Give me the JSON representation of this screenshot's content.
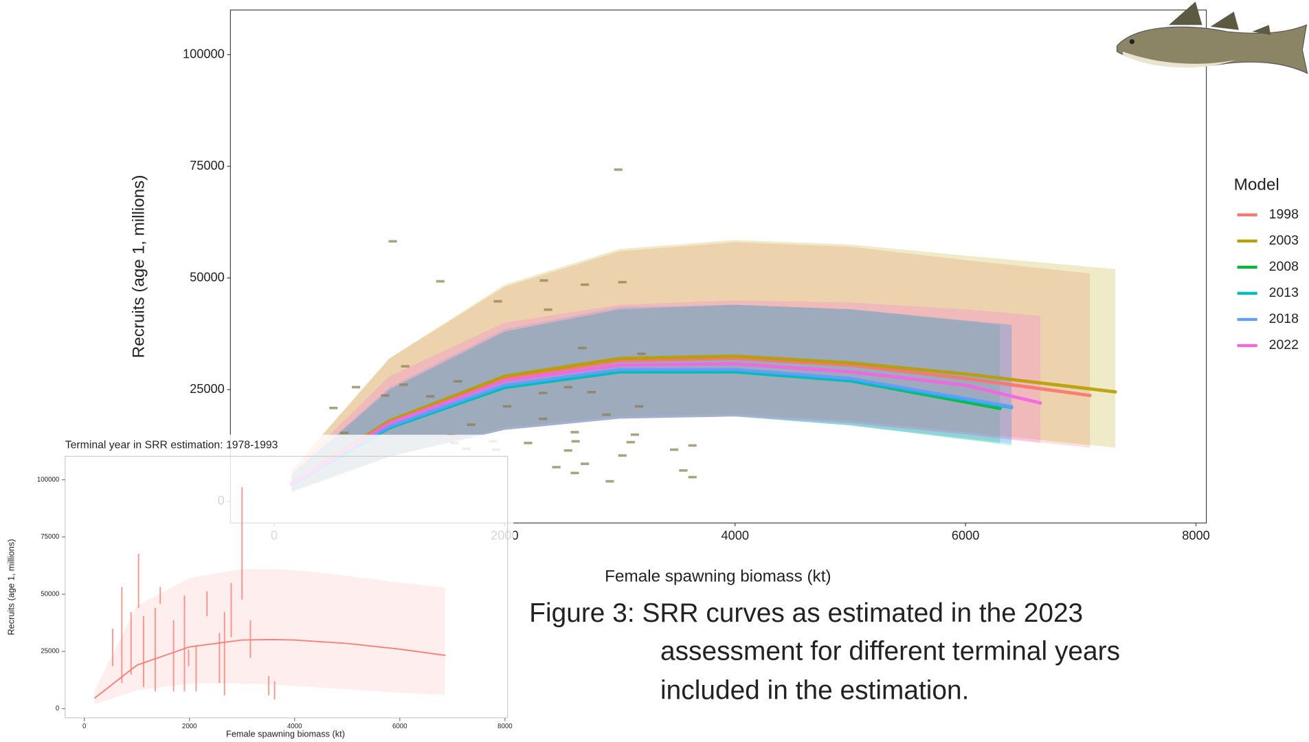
{
  "chart_data": [
    {
      "type": "line",
      "xlabel": "Female spawning biomass (kt)",
      "ylabel": "Recruits (age 1, millions)",
      "xlim": [
        -380,
        8090
      ],
      "ylim": [
        -4850,
        110000
      ],
      "xticks": [
        0,
        2000,
        4000,
        6000,
        8000
      ],
      "yticks": [
        0,
        25000,
        50000,
        75000,
        100000
      ],
      "grid": false,
      "legend": "right",
      "legend_title": "Model",
      "series": [
        {
          "name": "1998",
          "color": "#F8766D",
          "x": [
            150,
            1000,
            2000,
            3000,
            4000,
            5000,
            6000,
            7080
          ],
          "values": [
            4000,
            18000,
            27500,
            31500,
            32000,
            30500,
            27500,
            23700
          ],
          "lower": [
            2000,
            10000,
            16000,
            18500,
            19000,
            17500,
            15000,
            12000
          ],
          "upper": [
            7000,
            32000,
            48000,
            56000,
            58000,
            57000,
            54000,
            51000
          ]
        },
        {
          "name": "2003",
          "color": "#B79F00",
          "x": [
            150,
            1000,
            2000,
            3000,
            4000,
            5000,
            6000,
            7300
          ],
          "values": [
            4000,
            18000,
            28000,
            32000,
            32500,
            31000,
            28500,
            24500
          ],
          "lower": [
            2000,
            10000,
            16500,
            19000,
            19500,
            18000,
            15500,
            12000
          ],
          "upper": [
            7000,
            32000,
            48500,
            56500,
            58500,
            57500,
            55000,
            52000
          ]
        },
        {
          "name": "2008",
          "color": "#00BA38",
          "x": [
            150,
            1000,
            2000,
            3000,
            4000,
            5000,
            6300
          ],
          "values": [
            3800,
            16500,
            25500,
            29000,
            29000,
            27000,
            20800
          ],
          "lower": [
            2200,
            10000,
            16000,
            18500,
            19000,
            17000,
            13000
          ],
          "upper": [
            6000,
            25000,
            38000,
            43000,
            44000,
            43000,
            39500
          ]
        },
        {
          "name": "2013",
          "color": "#00BFC4",
          "x": [
            150,
            1000,
            2000,
            3000,
            4000,
            5000,
            6400
          ],
          "values": [
            3800,
            16500,
            25500,
            29000,
            29000,
            27000,
            21000
          ],
          "lower": [
            2200,
            10000,
            16000,
            18500,
            19000,
            17000,
            12500
          ],
          "upper": [
            6000,
            25000,
            38000,
            43000,
            44000,
            43000,
            39500
          ]
        },
        {
          "name": "2018",
          "color": "#619CFF",
          "x": [
            150,
            1000,
            2000,
            3000,
            4000,
            5000,
            6400
          ],
          "values": [
            3800,
            16800,
            26000,
            29500,
            29500,
            27500,
            21200
          ],
          "lower": [
            2200,
            10000,
            16000,
            18500,
            19000,
            17000,
            13000
          ],
          "upper": [
            6000,
            25500,
            38500,
            43500,
            44000,
            43000,
            39500
          ]
        },
        {
          "name": "2022",
          "color": "#F564E3",
          "x": [
            150,
            1000,
            2000,
            3000,
            4000,
            5000,
            6000,
            6650
          ],
          "values": [
            4000,
            17500,
            27000,
            30500,
            30800,
            29000,
            26000,
            22000
          ],
          "lower": [
            2200,
            10000,
            16000,
            18500,
            19000,
            17500,
            15000,
            13000
          ],
          "upper": [
            6500,
            28000,
            40000,
            44000,
            45000,
            44500,
            43000,
            41500
          ]
        }
      ],
      "observations": {
        "color": "#8a7a4a",
        "x": [
          2986,
          1029,
          1442,
          2341,
          2696,
          3022,
          1942,
          2377,
          2674,
          1138,
          3188,
          1594,
          710,
          1123,
          964,
          1355,
          514,
          1370,
          2022,
          2551,
          2754,
          2333,
          2884,
          3167,
          2333,
          1710,
          609,
          1536,
          2609,
          3130,
          2616,
          2203,
          1899,
          3094,
          1565,
          1667,
          1928,
          2551,
          3471,
          3630,
          3022,
          2696,
          2449,
          2609,
          3551,
          3630,
          2913
        ],
        "y": [
          74254,
          58209,
          49254,
          49440,
          48507,
          49067,
          44776,
          42910,
          34328,
          30224,
          33022,
          26866,
          25560,
          26119,
          23694,
          23507,
          20896,
          19963,
          21269,
          25560,
          24440,
          24254,
          19403,
          21269,
          18470,
          17164,
          15299,
          14739,
          15485,
          14925,
          13433,
          13060,
          13433,
          13246,
          13060,
          11754,
          11567,
          11381,
          11567,
          12500,
          10261,
          8396,
          7649,
          6343,
          6903,
          5410,
          4478
        ]
      }
    },
    {
      "type": "line",
      "title": "Terminal year in SRR estimation: 1978-1993",
      "xlabel": "Female spawning biomass (kt)",
      "ylabel": "Recruits (age 1, millions)",
      "xlim": [
        -365,
        8050
      ],
      "ylim": [
        -4000,
        110200
      ],
      "xticks": [
        0,
        2000,
        4000,
        6000,
        8000
      ],
      "yticks": [
        0,
        25000,
        50000,
        75000,
        100000
      ],
      "grid": false,
      "series": [
        {
          "color": "#F8766D",
          "x": [
            200,
            1000,
            2000,
            3000,
            3600,
            4000,
            5000,
            6000,
            6860
          ],
          "values": [
            4700,
            19000,
            27000,
            30000,
            30200,
            30000,
            28500,
            26000,
            23300
          ],
          "lower": [
            2000,
            8000,
            11000,
            11000,
            10500,
            10000,
            8500,
            7000,
            6000
          ],
          "upper": [
            8000,
            45000,
            57000,
            61000,
            61000,
            60500,
            58000,
            55000,
            53000
          ]
        }
      ],
      "errorbars": {
        "color": "#F8766D",
        "x": [
          1032,
          3000,
          714,
          540,
          889,
          1349,
          1444,
          1905,
          2333,
          2667,
          2794,
          3159,
          3508,
          3619,
          1698,
          2127,
          2571,
          1127,
          1984
        ],
        "low": [
          44000,
          47636,
          11273,
          18545,
          14909,
          7636,
          45818,
          7636,
          40364,
          5818,
          31273,
          22182,
          5818,
          4000,
          7636,
          7636,
          11273,
          9455,
          18545
        ],
        "high": [
          67636,
          96727,
          53091,
          34909,
          42182,
          44000,
          53091,
          49455,
          51273,
          42182,
          54909,
          38545,
          14182,
          12000,
          38545,
          27636,
          33091,
          40364,
          25818
        ]
      }
    }
  ],
  "caption": [
    "Figure 3: SRR curves as estimated in the 2023",
    "assessment for different terminal years",
    "included in the estimation."
  ]
}
